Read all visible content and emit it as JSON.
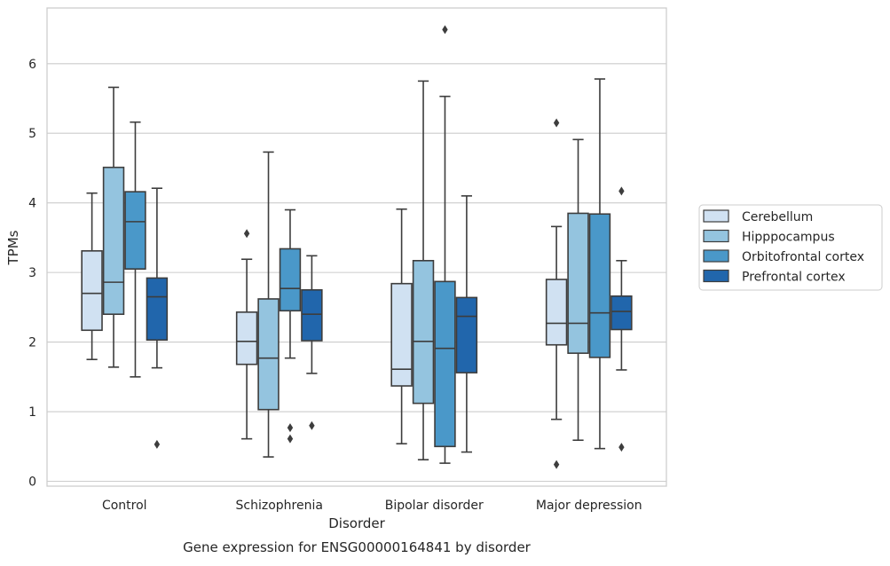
{
  "chart_data": {
    "type": "box",
    "title": "",
    "caption": "Gene expression for ENSG00000164841 by disorder",
    "xlabel": "Disorder",
    "ylabel": "TPMs",
    "ylim": [
      -0.07,
      6.8
    ],
    "yticks": [
      "0",
      "1",
      "2",
      "3",
      "4",
      "5",
      "6"
    ],
    "grid": true,
    "legend_position": "right",
    "categories": [
      "Control",
      "Schizophrenia",
      "Bipolar disorder",
      "Major depression"
    ],
    "series": [
      {
        "name": "Cerebellum",
        "color": "#d0e1f2",
        "boxes": [
          {
            "whislo": 1.75,
            "q1": 2.17,
            "med": 2.7,
            "q3": 3.31,
            "whishi": 4.14,
            "fliers": []
          },
          {
            "whislo": 0.61,
            "q1": 1.68,
            "med": 2.01,
            "q3": 2.43,
            "whishi": 3.19,
            "fliers": [
              3.56
            ]
          },
          {
            "whislo": 0.54,
            "q1": 1.37,
            "med": 1.61,
            "q3": 2.84,
            "whishi": 3.91,
            "fliers": []
          },
          {
            "whislo": 0.89,
            "q1": 1.96,
            "med": 2.27,
            "q3": 2.9,
            "whishi": 3.66,
            "fliers": [
              0.24,
              5.15
            ]
          }
        ]
      },
      {
        "name": "Hipppocampus",
        "color": "#94c4df",
        "boxes": [
          {
            "whislo": 1.64,
            "q1": 2.4,
            "med": 2.86,
            "q3": 4.51,
            "whishi": 5.66,
            "fliers": []
          },
          {
            "whislo": 0.35,
            "q1": 1.03,
            "med": 1.77,
            "q3": 2.62,
            "whishi": 4.73,
            "fliers": []
          },
          {
            "whislo": 0.31,
            "q1": 1.12,
            "med": 2.01,
            "q3": 3.17,
            "whishi": 5.75,
            "fliers": []
          },
          {
            "whislo": 0.59,
            "q1": 1.84,
            "med": 2.27,
            "q3": 3.85,
            "whishi": 4.91,
            "fliers": []
          }
        ]
      },
      {
        "name": "Orbitofrontal cortex",
        "color": "#4a98c9",
        "boxes": [
          {
            "whislo": 1.5,
            "q1": 3.05,
            "med": 3.73,
            "q3": 4.16,
            "whishi": 5.16,
            "fliers": []
          },
          {
            "whislo": 1.77,
            "q1": 2.45,
            "med": 2.77,
            "q3": 3.34,
            "whishi": 3.9,
            "fliers": [
              0.61,
              0.77
            ]
          },
          {
            "whislo": 0.26,
            "q1": 0.5,
            "med": 1.91,
            "q3": 2.87,
            "whishi": 5.53,
            "fliers": [
              6.49
            ]
          },
          {
            "whislo": 0.47,
            "q1": 1.78,
            "med": 2.42,
            "q3": 3.84,
            "whishi": 5.78,
            "fliers": []
          }
        ]
      },
      {
        "name": "Prefrontal cortex",
        "color": "#2166ac",
        "boxes": [
          {
            "whislo": 1.63,
            "q1": 2.03,
            "med": 2.65,
            "q3": 2.92,
            "whishi": 4.21,
            "fliers": [
              0.53
            ]
          },
          {
            "whislo": 1.55,
            "q1": 2.02,
            "med": 2.4,
            "q3": 2.75,
            "whishi": 3.24,
            "fliers": [
              0.8
            ]
          },
          {
            "whislo": 0.42,
            "q1": 1.56,
            "med": 2.37,
            "q3": 2.64,
            "whishi": 4.1,
            "fliers": []
          },
          {
            "whislo": 1.6,
            "q1": 2.18,
            "med": 2.44,
            "q3": 2.66,
            "whishi": 3.17,
            "fliers": [
              0.49,
              4.17
            ]
          }
        ]
      }
    ]
  }
}
